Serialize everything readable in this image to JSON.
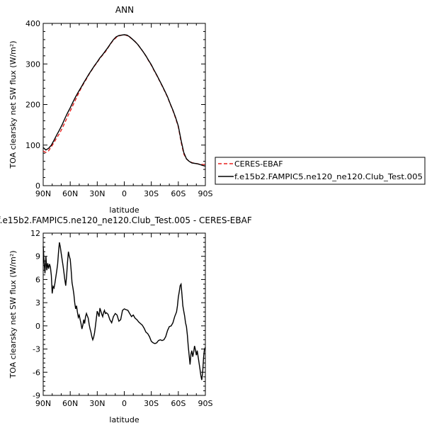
{
  "chart_data": [
    {
      "type": "line",
      "title": "ANN",
      "xlabel": "latitude",
      "ylabel": "TOA clearsky net SW flux (W/m²)",
      "xlim": [
        90,
        -90
      ],
      "ylim": [
        0,
        400
      ],
      "xticks": [
        90,
        60,
        30,
        0,
        -30,
        -60,
        -90
      ],
      "xtick_labels": [
        "90N",
        "60N",
        "30N",
        "0",
        "30S",
        "60S",
        "90S"
      ],
      "yticks": [
        0,
        100,
        200,
        300,
        400
      ],
      "ytick_labels": [
        "0",
        "100",
        "200",
        "300",
        "400"
      ],
      "legend": [
        "CERES-EBAF",
        "f.e15b2.FAMPIC5.ne120_ne120.Club_Test.005"
      ],
      "legend_position": "right",
      "series": [
        {
          "name": "CERES-EBAF",
          "color": "#e8201e",
          "dash": "dashed",
          "x": [
            90,
            87,
            84,
            81,
            78,
            75,
            72,
            69,
            66,
            63,
            60,
            57,
            54,
            51,
            48,
            45,
            42,
            39,
            36,
            33,
            30,
            27,
            24,
            21,
            18,
            15,
            12,
            9,
            6,
            3,
            0,
            -3,
            -6,
            -9,
            -12,
            -15,
            -18,
            -21,
            -24,
            -27,
            -30,
            -33,
            -36,
            -39,
            -42,
            -45,
            -48,
            -51,
            -54,
            -57,
            -60,
            -63,
            -66,
            -69,
            -72,
            -75,
            -78,
            -81,
            -84,
            -87,
            -90
          ],
          "y": [
            85,
            82,
            86,
            96,
            106,
            118,
            128,
            141,
            155,
            170,
            184,
            198,
            212,
            226,
            240,
            252,
            263,
            275,
            285,
            295,
            304,
            314,
            322,
            330,
            340,
            350,
            359,
            365,
            369,
            371,
            372,
            370,
            366,
            361,
            355,
            348,
            339,
            330,
            320,
            308,
            297,
            284,
            272,
            259,
            246,
            232,
            218,
            201,
            185,
            166,
            145,
            108,
            78,
            66,
            60,
            57,
            55,
            54,
            53,
            52,
            52
          ]
        },
        {
          "name": "f.e15b2.FAMPIC5.ne120_ne120.Club_Test.005",
          "color": "#000000",
          "dash": "solid",
          "x": [
            90,
            87,
            84,
            81,
            78,
            75,
            72,
            69,
            66,
            63,
            60,
            57,
            54,
            51,
            48,
            45,
            42,
            39,
            36,
            33,
            30,
            27,
            24,
            21,
            18,
            15,
            12,
            9,
            6,
            3,
            0,
            -3,
            -6,
            -9,
            -12,
            -15,
            -18,
            -21,
            -24,
            -27,
            -30,
            -33,
            -36,
            -39,
            -42,
            -45,
            -48,
            -51,
            -54,
            -57,
            -60,
            -63,
            -66,
            -69,
            -72,
            -75,
            -78,
            -81,
            -84,
            -87,
            -90
          ],
          "y": [
            94,
            88,
            92,
            100,
            112,
            125,
            137,
            150,
            165,
            179,
            192,
            206,
            219,
            231,
            242,
            254,
            265,
            276,
            286,
            296,
            305,
            315,
            323,
            332,
            341,
            351,
            360,
            367,
            370,
            371,
            372,
            371,
            367,
            361,
            355,
            348,
            339,
            330,
            320,
            309,
            298,
            285,
            273,
            260,
            247,
            233,
            219,
            202,
            186,
            168,
            147,
            112,
            82,
            66,
            60,
            56,
            55,
            54,
            52,
            50,
            48
          ]
        }
      ]
    },
    {
      "type": "line",
      "title": "f.e15b2.FAMPIC5.ne120_ne120.Club_Test.005 - CERES-EBAF",
      "xlabel": "latitude",
      "ylabel": "TOA clearsky net SW flux (W/m²)",
      "xlim": [
        90,
        -90
      ],
      "ylim": [
        -9,
        12
      ],
      "xticks": [
        90,
        60,
        30,
        0,
        -30,
        -60,
        -90
      ],
      "xtick_labels": [
        "90N",
        "60N",
        "30N",
        "0",
        "30S",
        "60S",
        "90S"
      ],
      "yticks": [
        -9,
        -6,
        -3,
        0,
        3,
        6,
        9,
        12
      ],
      "ytick_labels": [
        "-9",
        "-6",
        "-3",
        "0",
        "3",
        "6",
        "9",
        "12"
      ],
      "series": [
        {
          "color": "#000000",
          "x": [
            90,
            89,
            88,
            87,
            86,
            85,
            84,
            83,
            82,
            81,
            80,
            79,
            78,
            77,
            76,
            75,
            74,
            73,
            72,
            71,
            70,
            69,
            68,
            67,
            66,
            65,
            64,
            63,
            62,
            61,
            60,
            59,
            58,
            57,
            56,
            55,
            54,
            53,
            52,
            51,
            50,
            49,
            48,
            47,
            46,
            45,
            44,
            43,
            42,
            41,
            40,
            39,
            38,
            37,
            36,
            35,
            34,
            33,
            32,
            31,
            30,
            29,
            28,
            27,
            26,
            25,
            24,
            23,
            22,
            21,
            20,
            18,
            16,
            14,
            12,
            10,
            8,
            6,
            4,
            2,
            0,
            -2,
            -4,
            -6,
            -8,
            -10,
            -12,
            -14,
            -16,
            -18,
            -20,
            -22,
            -24,
            -26,
            -28,
            -30,
            -32,
            -34,
            -36,
            -38,
            -40,
            -42,
            -44,
            -46,
            -48,
            -50,
            -52,
            -54,
            -56,
            -58,
            -59,
            -60,
            -61,
            -62,
            -63,
            -64,
            -65,
            -66,
            -67,
            -68,
            -69,
            -70,
            -71,
            -72,
            -73,
            -74,
            -75,
            -76,
            -77,
            -78,
            -79,
            -80,
            -81,
            -82,
            -83,
            -84,
            -85,
            -86,
            -87,
            -88,
            -89,
            -90
          ],
          "y": [
            10.3,
            8.2,
            6.8,
            9.0,
            7.2,
            8.1,
            7.4,
            8.0,
            7.6,
            6.5,
            4.2,
            5.1,
            4.9,
            5.5,
            6.3,
            7.1,
            8.0,
            9.5,
            10.8,
            10.2,
            9.4,
            8.6,
            7.8,
            6.9,
            6.0,
            5.2,
            6.5,
            8.2,
            9.6,
            9.0,
            8.6,
            7.3,
            5.6,
            4.9,
            4.1,
            3.0,
            2.2,
            2.6,
            1.8,
            1.1,
            1.4,
            0.8,
            0.3,
            -0.4,
            0.1,
            0.8,
            0.3,
            1.2,
            1.6,
            1.3,
            1.0,
            0.2,
            -0.4,
            -0.8,
            -1.4,
            -1.8,
            -1.5,
            -0.9,
            0.0,
            1.0,
            1.9,
            1.6,
            1.2,
            2.3,
            1.9,
            1.5,
            1.2,
            1.7,
            2.0,
            1.6,
            1.7,
            1.5,
            0.8,
            0.4,
            1.2,
            1.6,
            1.4,
            0.6,
            0.8,
            2.0,
            2.2,
            2.1,
            2.0,
            1.6,
            1.2,
            1.4,
            1.0,
            0.8,
            0.5,
            0.3,
            0.1,
            -0.3,
            -0.8,
            -1.0,
            -1.4,
            -2.0,
            -2.2,
            -2.3,
            -2.2,
            -1.9,
            -1.8,
            -1.9,
            -1.8,
            -1.4,
            -0.6,
            -0.1,
            0.0,
            0.4,
            1.2,
            1.8,
            2.6,
            3.7,
            4.4,
            5.2,
            5.4,
            4.1,
            2.6,
            1.9,
            1.3,
            0.4,
            -0.1,
            -1.2,
            -2.6,
            -3.8,
            -5.0,
            -3.7,
            -3.2,
            -4.0,
            -3.4,
            -2.6,
            -3.1,
            -3.8,
            -3.2,
            -4.0,
            -4.8,
            -5.6,
            -6.4,
            -7.0,
            -6.0,
            -4.1,
            -3.0,
            -2.8
          ]
        }
      ]
    }
  ]
}
